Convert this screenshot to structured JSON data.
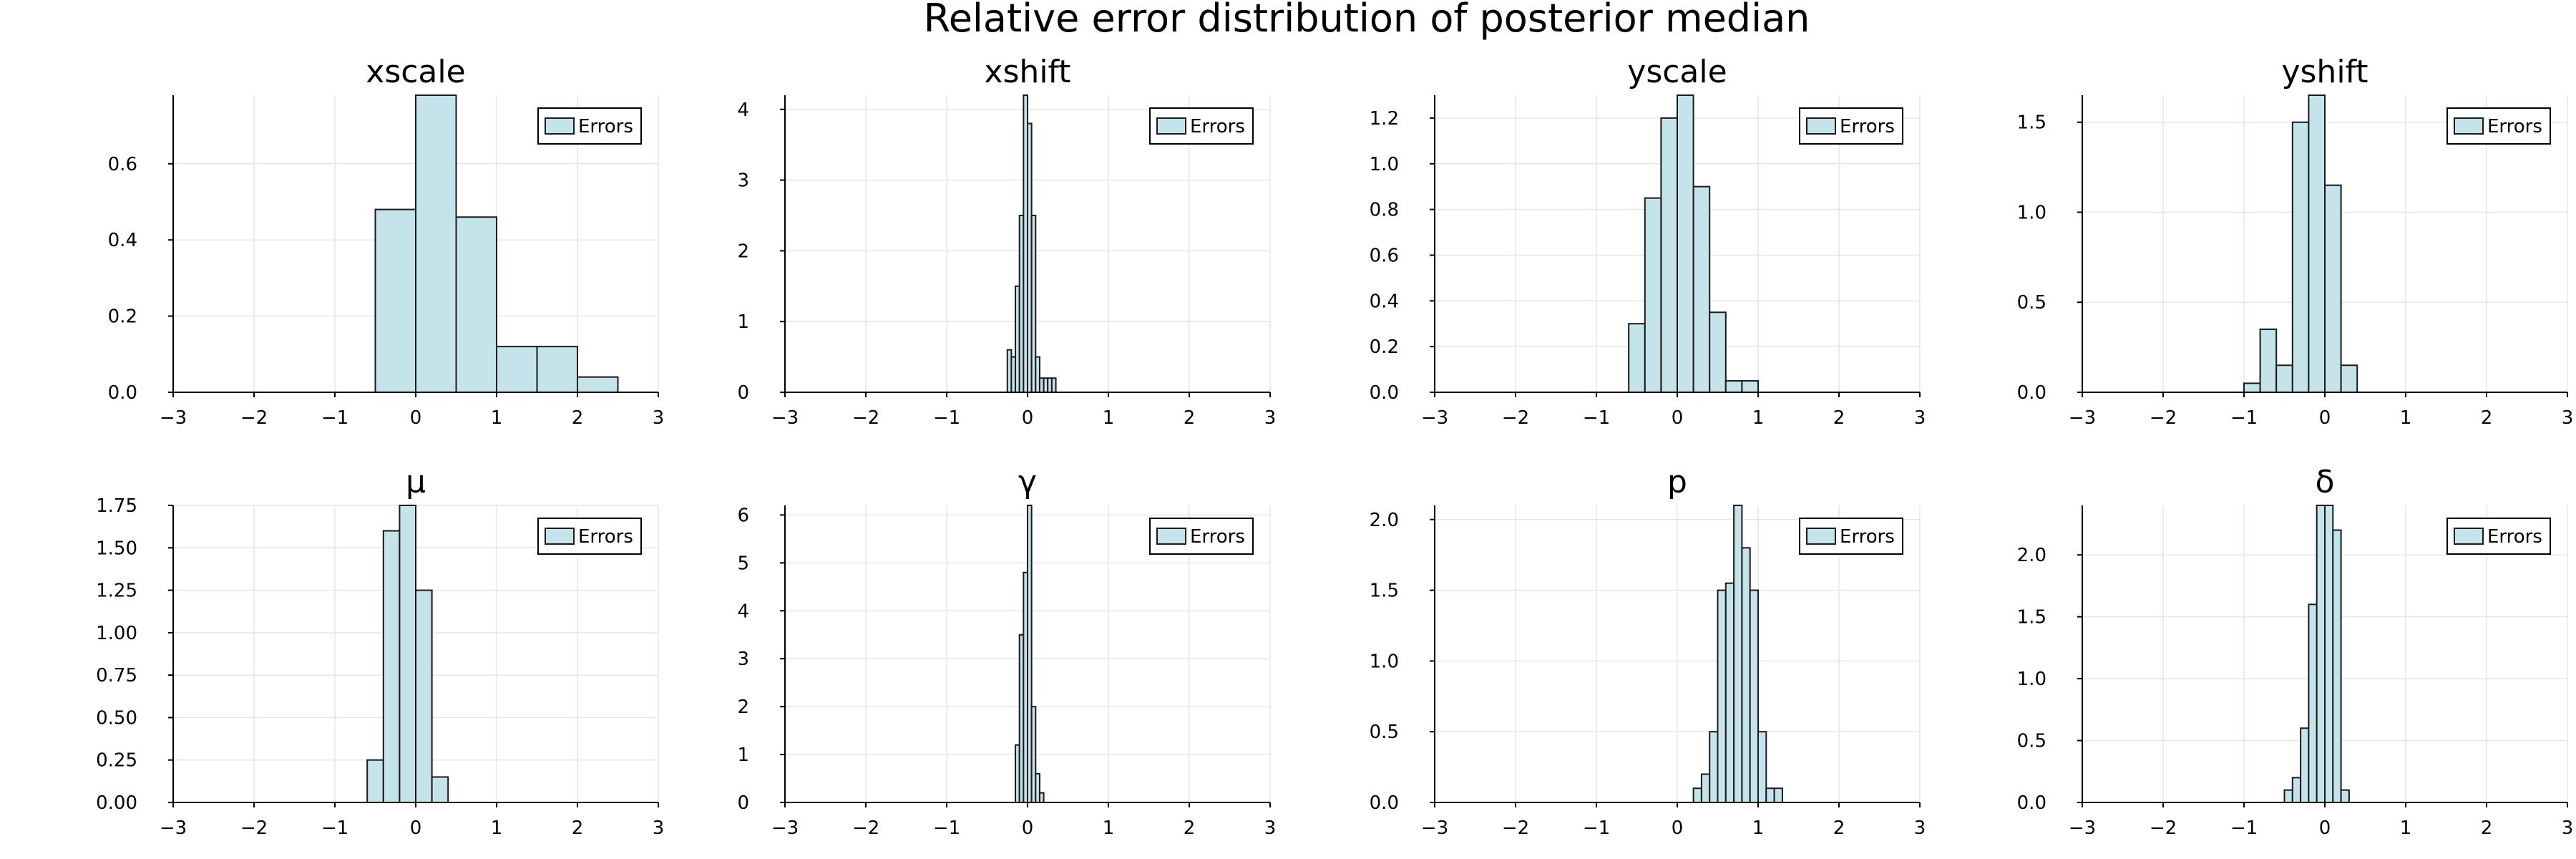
{
  "figure": {
    "title": "Relative error distribution of posterior median"
  },
  "chart_data": [
    {
      "type": "bar",
      "title": "xscale",
      "xlim": [
        -3,
        3
      ],
      "ylim": [
        0,
        0.78
      ],
      "xticks": [
        -3,
        -2,
        -1,
        0,
        1,
        2,
        3
      ],
      "yticks": [
        0.0,
        0.2,
        0.4,
        0.6
      ],
      "ytick_labels": [
        "0.0",
        "0.2",
        "0.4",
        "0.6"
      ],
      "grid": true,
      "legend": {
        "label": "Errors",
        "position": "top-right"
      },
      "bin_edges": [
        -0.5,
        0.0,
        0.5,
        1.0,
        1.5,
        2.0,
        2.5
      ],
      "values": [
        0.48,
        0.78,
        0.46,
        0.12,
        0.12,
        0.04
      ]
    },
    {
      "type": "bar",
      "title": "xshift",
      "xlim": [
        -3,
        3
      ],
      "ylim": [
        0,
        4.2
      ],
      "xticks": [
        -3,
        -2,
        -1,
        0,
        1,
        2,
        3
      ],
      "yticks": [
        0,
        1,
        2,
        3,
        4
      ],
      "ytick_labels": [
        "0",
        "1",
        "2",
        "3",
        "4"
      ],
      "grid": true,
      "legend": {
        "label": "Errors",
        "position": "top-right"
      },
      "bin_edges": [
        -0.25,
        -0.2,
        -0.15,
        -0.1,
        -0.05,
        0.0,
        0.05,
        0.1,
        0.15,
        0.2,
        0.25,
        0.3,
        0.35
      ],
      "values": [
        0.6,
        0.5,
        1.5,
        2.5,
        4.2,
        3.8,
        2.5,
        0.5,
        0.2,
        0.2,
        0.2,
        0.2
      ]
    },
    {
      "type": "bar",
      "title": "yscale",
      "xlim": [
        -3,
        3
      ],
      "ylim": [
        0,
        1.3
      ],
      "xticks": [
        -3,
        -2,
        -1,
        0,
        1,
        2,
        3
      ],
      "yticks": [
        0.0,
        0.2,
        0.4,
        0.6,
        0.8,
        1.0,
        1.2
      ],
      "ytick_labels": [
        "0.0",
        "0.2",
        "0.4",
        "0.6",
        "0.8",
        "1.0",
        "1.2"
      ],
      "grid": true,
      "legend": {
        "label": "Errors",
        "position": "top-right"
      },
      "bin_edges": [
        -0.6,
        -0.4,
        -0.2,
        0.0,
        0.2,
        0.4,
        0.6,
        0.8,
        1.0
      ],
      "values": [
        0.3,
        0.85,
        1.2,
        1.3,
        0.9,
        0.35,
        0.05,
        0.05
      ]
    },
    {
      "type": "bar",
      "title": "yshift",
      "xlim": [
        -3,
        3
      ],
      "ylim": [
        0,
        1.65
      ],
      "xticks": [
        -3,
        -2,
        -1,
        0,
        1,
        2,
        3
      ],
      "yticks": [
        0.0,
        0.5,
        1.0,
        1.5
      ],
      "ytick_labels": [
        "0.0",
        "0.5",
        "1.0",
        "1.5"
      ],
      "grid": true,
      "legend": {
        "label": "Errors",
        "position": "top-right"
      },
      "bin_edges": [
        -1.0,
        -0.8,
        -0.6,
        -0.4,
        -0.2,
        0.0,
        0.2,
        0.4
      ],
      "values": [
        0.05,
        0.35,
        0.15,
        1.5,
        1.65,
        1.15,
        0.15
      ]
    },
    {
      "type": "bar",
      "title": "μ",
      "xlim": [
        -3,
        3
      ],
      "ylim": [
        0,
        1.75
      ],
      "xticks": [
        -3,
        -2,
        -1,
        0,
        1,
        2,
        3
      ],
      "yticks": [
        0.0,
        0.25,
        0.5,
        0.75,
        1.0,
        1.25,
        1.5,
        1.75
      ],
      "ytick_labels": [
        "0.00",
        "0.25",
        "0.50",
        "0.75",
        "1.00",
        "1.25",
        "1.50",
        "1.75"
      ],
      "grid": true,
      "legend": {
        "label": "Errors",
        "position": "top-right"
      },
      "bin_edges": [
        -0.6,
        -0.4,
        -0.2,
        0.0,
        0.2,
        0.4
      ],
      "values": [
        0.25,
        1.6,
        1.75,
        1.25,
        0.15
      ]
    },
    {
      "type": "bar",
      "title": "γ",
      "xlim": [
        -3,
        3
      ],
      "ylim": [
        0,
        6.2
      ],
      "xticks": [
        -3,
        -2,
        -1,
        0,
        1,
        2,
        3
      ],
      "yticks": [
        0,
        1,
        2,
        3,
        4,
        5,
        6
      ],
      "ytick_labels": [
        "0",
        "1",
        "2",
        "3",
        "4",
        "5",
        "6"
      ],
      "grid": true,
      "legend": {
        "label": "Errors",
        "position": "top-right"
      },
      "bin_edges": [
        -0.15,
        -0.1,
        -0.05,
        0.0,
        0.05,
        0.1,
        0.15,
        0.2
      ],
      "values": [
        1.2,
        3.5,
        4.8,
        6.2,
        2.0,
        0.6,
        0.2
      ]
    },
    {
      "type": "bar",
      "title": "p",
      "xlim": [
        -3,
        3
      ],
      "ylim": [
        0,
        2.1
      ],
      "xticks": [
        -3,
        -2,
        -1,
        0,
        1,
        2,
        3
      ],
      "yticks": [
        0.0,
        0.5,
        1.0,
        1.5,
        2.0
      ],
      "ytick_labels": [
        "0.0",
        "0.5",
        "1.0",
        "1.5",
        "2.0"
      ],
      "grid": true,
      "legend": {
        "label": "Errors",
        "position": "top-right"
      },
      "bin_edges": [
        0.2,
        0.3,
        0.4,
        0.5,
        0.6,
        0.7,
        0.8,
        0.9,
        1.0,
        1.1,
        1.2,
        1.3
      ],
      "values": [
        0.1,
        0.2,
        0.5,
        1.5,
        1.55,
        2.1,
        1.8,
        1.5,
        0.5,
        0.1,
        0.1
      ]
    },
    {
      "type": "bar",
      "title": "δ",
      "xlim": [
        -3,
        3
      ],
      "ylim": [
        0,
        2.4
      ],
      "xticks": [
        -3,
        -2,
        -1,
        0,
        1,
        2,
        3
      ],
      "yticks": [
        0.0,
        0.5,
        1.0,
        1.5,
        2.0
      ],
      "ytick_labels": [
        "0.0",
        "0.5",
        "1.0",
        "1.5",
        "2.0"
      ],
      "grid": true,
      "legend": {
        "label": "Errors",
        "position": "top-right"
      },
      "bin_edges": [
        -0.5,
        -0.4,
        -0.3,
        -0.2,
        -0.1,
        0.0,
        0.1,
        0.2,
        0.3
      ],
      "values": [
        0.1,
        0.2,
        0.6,
        1.6,
        2.4,
        2.4,
        2.2,
        0.1
      ]
    }
  ]
}
